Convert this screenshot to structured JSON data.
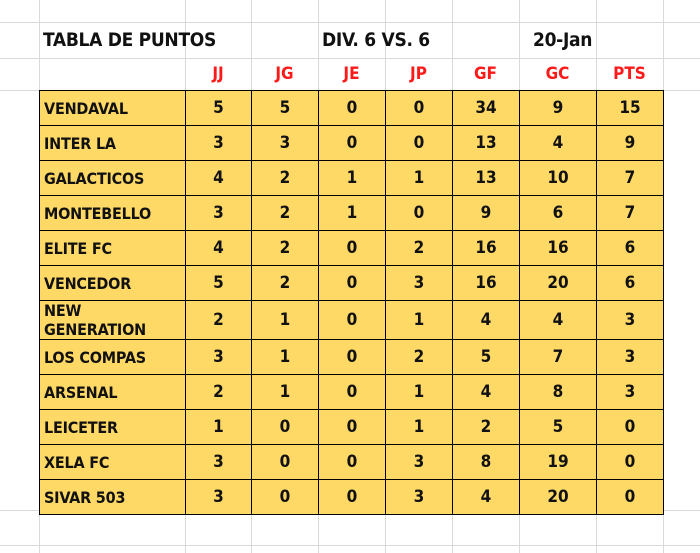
{
  "title": {
    "label": "TABLA DE PUNTOS",
    "division": "DIV. 6 VS. 6",
    "date": "20-Jan"
  },
  "headers": [
    "JJ",
    "JG",
    "JE",
    "JP",
    "GF",
    "GC",
    "PTS"
  ],
  "rows": [
    {
      "team": "VENDAVAL",
      "values": [
        "5",
        "5",
        "0",
        "0",
        "34",
        "9",
        "15"
      ]
    },
    {
      "team": "INTER LA",
      "values": [
        "3",
        "3",
        "0",
        "0",
        "13",
        "4",
        "9"
      ]
    },
    {
      "team": "GALACTICOS",
      "values": [
        "4",
        "2",
        "1",
        "1",
        "13",
        "10",
        "7"
      ]
    },
    {
      "team": "MONTEBELLO",
      "values": [
        "3",
        "2",
        "1",
        "0",
        "9",
        "6",
        "7"
      ]
    },
    {
      "team": "ELITE FC",
      "values": [
        "4",
        "2",
        "0",
        "2",
        "16",
        "16",
        "6"
      ]
    },
    {
      "team": "VENCEDOR",
      "values": [
        "5",
        "2",
        "0",
        "3",
        "16",
        "20",
        "6"
      ]
    },
    {
      "team": "NEW GENERATION",
      "values": [
        "2",
        "1",
        "0",
        "1",
        "4",
        "4",
        "3"
      ]
    },
    {
      "team": "LOS COMPAS",
      "values": [
        "3",
        "1",
        "0",
        "2",
        "5",
        "7",
        "3"
      ]
    },
    {
      "team": "ARSENAL",
      "values": [
        "2",
        "1",
        "0",
        "1",
        "4",
        "8",
        "3"
      ]
    },
    {
      "team": "LEICETER",
      "values": [
        "1",
        "0",
        "0",
        "1",
        "2",
        "5",
        "0"
      ]
    },
    {
      "team": "XELA FC",
      "values": [
        "3",
        "0",
        "0",
        "3",
        "8",
        "19",
        "0"
      ]
    },
    {
      "team": "SIVAR 503",
      "values": [
        "3",
        "0",
        "0",
        "3",
        "4",
        "20",
        "0"
      ]
    }
  ],
  "colors": {
    "table_fill": "#ffd966",
    "header_text": "#ff1a1a",
    "gridline": "#dadada"
  }
}
